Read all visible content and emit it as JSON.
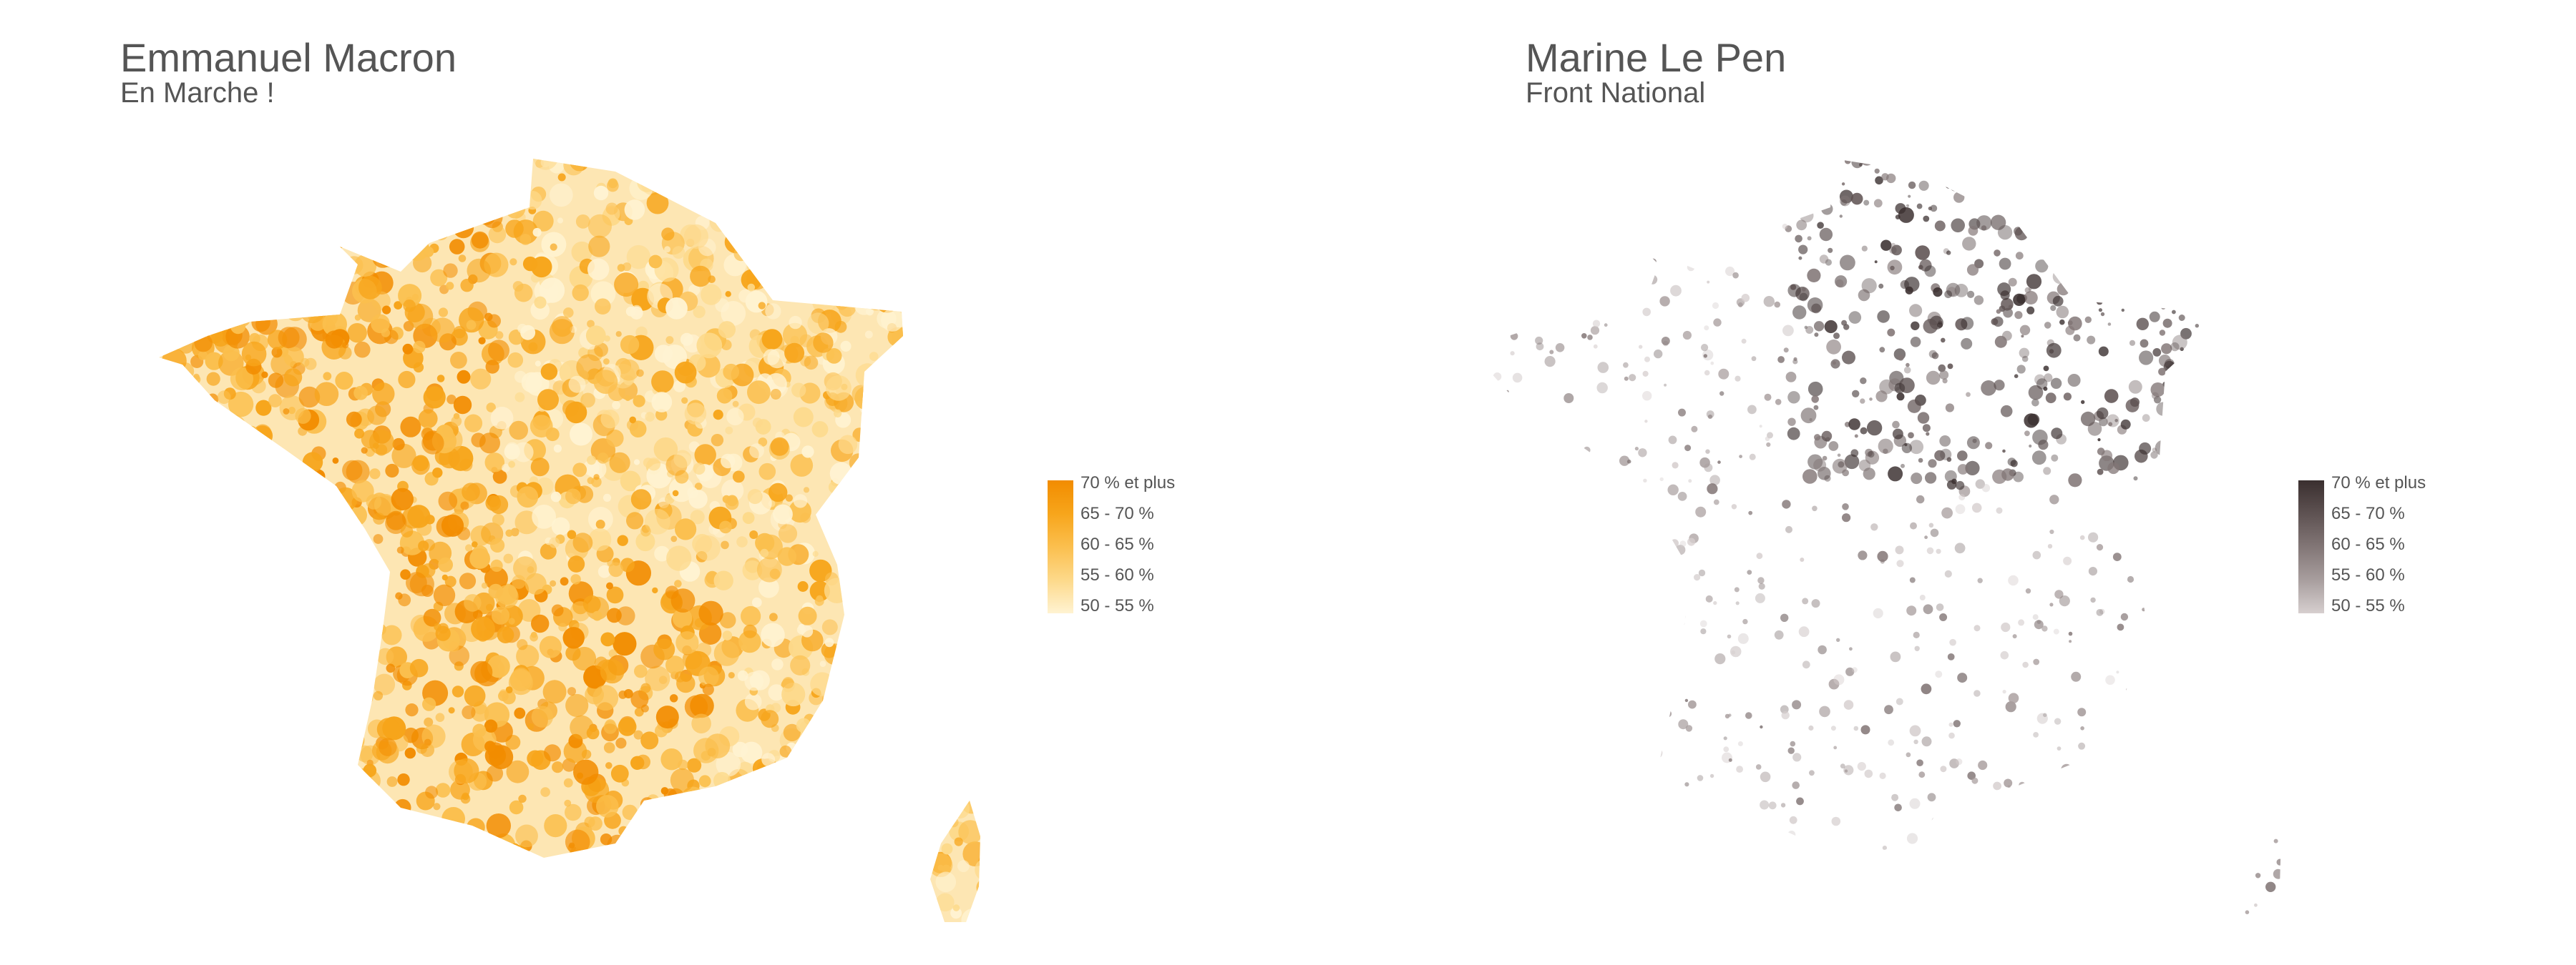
{
  "panels": [
    {
      "candidate": "Emmanuel Macron",
      "party": "En Marche !",
      "legend": {
        "labels": [
          "70 % et plus",
          "65 - 70 %",
          "60 - 65 %",
          "55 - 60 %",
          "50 - 55 %"
        ],
        "colors": [
          "#f28c00",
          "#f7a51b",
          "#fbbf4e",
          "#fdd98a",
          "#fff3d2"
        ]
      },
      "map_fill": "#f59d14",
      "map_base": "#fde6b3"
    },
    {
      "candidate": "Marine Le Pen",
      "party": "Front National",
      "legend": {
        "labels": [
          "70 % et plus",
          "65 - 70 %",
          "60 - 65 %",
          "55 - 60 %",
          "50 - 55 %"
        ],
        "colors": [
          "#3a2f2f",
          "#5e5252",
          "#827676",
          "#a89e9e",
          "#d6cfcf"
        ]
      },
      "map_fill": "#6d6060",
      "map_base": "#d8d1d1"
    }
  ]
}
